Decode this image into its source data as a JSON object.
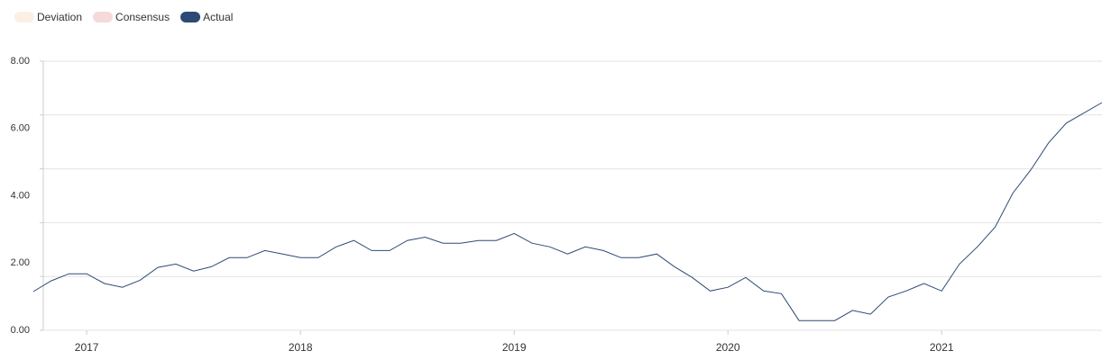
{
  "chart_data": {
    "type": "line",
    "legend_inactive": [
      {
        "name": "Deviation",
        "color": "#fcefe4"
      },
      {
        "name": "Consensus",
        "color": "#f6d9d9"
      }
    ],
    "series": [
      {
        "name": "Actual",
        "color": "#2d4a74",
        "values": [
          1.15,
          1.47,
          1.68,
          1.68,
          1.39,
          1.28,
          1.49,
          1.87,
          1.97,
          1.76,
          1.89,
          2.16,
          2.16,
          2.37,
          2.27,
          2.16,
          2.16,
          2.48,
          2.67,
          2.37,
          2.37,
          2.67,
          2.77,
          2.59,
          2.59,
          2.67,
          2.67,
          2.88,
          2.59,
          2.48,
          2.27,
          2.48,
          2.37,
          2.16,
          2.16,
          2.27,
          1.89,
          1.57,
          1.17,
          1.28,
          1.57,
          1.17,
          1.09,
          0.29,
          0.29,
          0.29,
          0.59,
          0.48,
          0.99,
          1.17,
          1.39,
          1.17,
          1.97,
          2.48,
          3.07,
          4.08,
          4.77,
          5.57,
          6.16,
          6.77
        ]
      }
    ],
    "x": [
      2016.75,
      2016.833,
      2016.917,
      2017,
      2017.083,
      2017.167,
      2017.25,
      2017.333,
      2017.417,
      2017.5,
      2017.583,
      2017.667,
      2017.75,
      2017.833,
      2017.917,
      2018,
      2018.083,
      2018.167,
      2018.25,
      2018.333,
      2018.417,
      2018.5,
      2018.583,
      2018.667,
      2018.75,
      2018.833,
      2018.917,
      2019,
      2019.083,
      2019.167,
      2019.25,
      2019.333,
      2019.417,
      2019.5,
      2019.583,
      2019.667,
      2019.75,
      2019.833,
      2019.917,
      2020,
      2020.083,
      2020.167,
      2020.25,
      2020.333,
      2020.417,
      2020.5,
      2020.583,
      2020.667,
      2020.75,
      2020.833,
      2020.917,
      2021,
      2021.083,
      2021.167,
      2021.25,
      2021.333,
      2021.417,
      2021.5,
      2021.583,
      2021.75
    ],
    "xlim": [
      2016.78,
      2021.75
    ],
    "xticks": [
      2017,
      2018,
      2019,
      2020,
      2021
    ],
    "ylim": [
      0,
      8
    ],
    "yticks": [
      {
        "value": 0,
        "label": "0.00"
      },
      {
        "value": 2,
        "label": "2.00"
      },
      {
        "value": 4,
        "label": "4.00"
      },
      {
        "value": 6,
        "label": "6.00"
      },
      {
        "value": 8,
        "label": "8.00"
      }
    ],
    "ygrid": [
      0,
      1.6,
      3.2,
      4.8,
      6.4,
      8
    ]
  }
}
